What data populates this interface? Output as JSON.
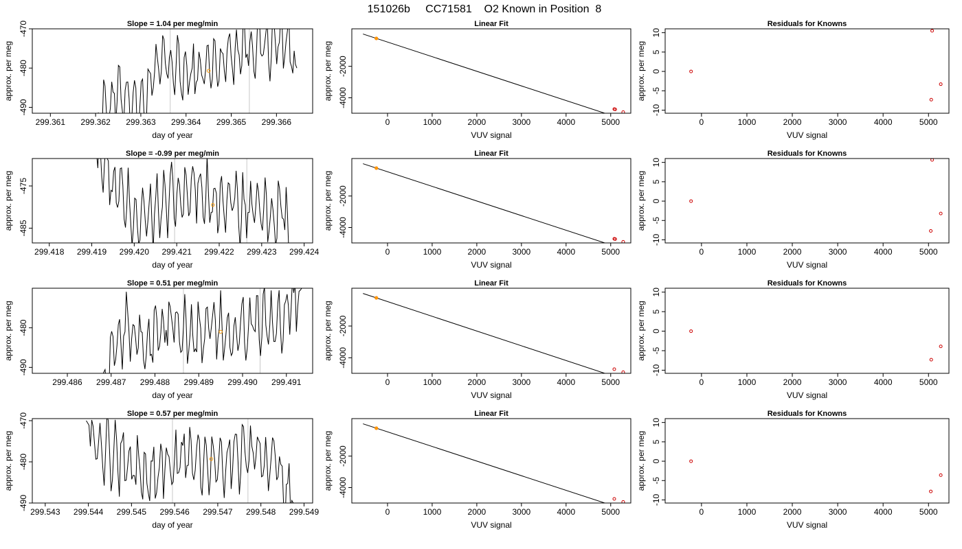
{
  "figure": {
    "title": "151026b     CC71581    O2 Known in Position  8",
    "colors": {
      "axis": "#000000",
      "trace": "#000000",
      "vline": "#c8c8c8",
      "orange": "#ff9900",
      "red": "#cc0000"
    }
  },
  "chart_data": [
    {
      "type": "line",
      "panel": "timeseries",
      "row": 0,
      "title": "Slope =  1.04  per meg/min",
      "slope": 1.04,
      "xlabel": "day of year",
      "ylabel": "approx. per meg",
      "xlim": [
        299.3606,
        299.3668
      ],
      "ylim": [
        -491.5,
        -470
      ],
      "xticks": [
        "299.361",
        "299.362",
        "299.363",
        "299.364",
        "299.365",
        "299.366"
      ],
      "yticks": [
        "-490",
        "-480",
        "-470"
      ],
      "vlines": [
        299.36365,
        299.3654
      ],
      "known_point": {
        "x": 299.3645,
        "y": -480.7
      },
      "trace": {
        "x_start": 299.362,
        "x_end": 299.36645,
        "y_start": -492,
        "knots": [
          [
            299.362,
            -492
          ],
          [
            299.3626,
            -486
          ],
          [
            299.363,
            -490
          ],
          [
            299.3635,
            -478
          ],
          [
            299.364,
            -482
          ],
          [
            299.3645,
            -480
          ],
          [
            299.365,
            -476
          ],
          [
            299.3654,
            -474
          ],
          [
            299.3659,
            -474
          ],
          [
            299.3662,
            -472
          ],
          [
            299.36645,
            -480
          ]
        ]
      }
    },
    {
      "type": "scatter",
      "panel": "linear_fit",
      "row": 0,
      "title": "Linear Fit",
      "xlabel": "VUV signal",
      "ylabel": "approx. per meg",
      "xlim": [
        -800,
        5450
      ],
      "ylim": [
        -4980,
        380
      ],
      "xticks": [
        "0",
        "1000",
        "2000",
        "3000",
        "4000",
        "5000"
      ],
      "yticks": [
        "-4000",
        "-2000"
      ],
      "fit_line": {
        "slope": -0.9285,
        "intercept": -460
      },
      "points": [
        [
          -250,
          -230
        ],
        [
          5080,
          -4720
        ],
        [
          5100,
          -4735
        ],
        [
          5280,
          -4910
        ]
      ],
      "known_point": {
        "x": -250,
        "y": -230
      }
    },
    {
      "type": "scatter",
      "panel": "residuals",
      "row": 0,
      "title": "Residuals for Knowns",
      "xlabel": "VUV signal",
      "ylabel": "approx. per meg",
      "xlim": [
        -800,
        5450
      ],
      "ylim": [
        -10.8,
        11
      ],
      "xticks": [
        "0",
        "1000",
        "2000",
        "3000",
        "4000",
        "5000"
      ],
      "yticks": [
        "-10",
        "-5",
        "0",
        "5",
        "10"
      ],
      "points": [
        [
          -230,
          0
        ],
        [
          5080,
          10.5
        ],
        [
          5060,
          -7.3
        ],
        [
          5270,
          -3.3
        ]
      ]
    },
    {
      "type": "line",
      "panel": "timeseries",
      "row": 1,
      "title": "Slope =  -0.99  per meg/min",
      "slope": -0.99,
      "xlabel": "day of year",
      "ylabel": "approx. per meg",
      "xlim": [
        299.4176,
        299.4242
      ],
      "ylim": [
        -488.5,
        -468.5
      ],
      "xticks": [
        "299.418",
        "299.419",
        "299.420",
        "299.421",
        "299.422",
        "299.423",
        "299.424"
      ],
      "yticks": [
        "-485",
        "-475"
      ],
      "vlines": [
        299.42095,
        299.42265
      ],
      "known_point": {
        "x": 299.42185,
        "y": -479.5
      },
      "trace": {
        "x_start": 299.41905,
        "x_end": 299.4237,
        "y_start": -466,
        "knots": [
          [
            299.41905,
            -466
          ],
          [
            299.4195,
            -475
          ],
          [
            299.42,
            -482
          ],
          [
            299.4205,
            -481
          ],
          [
            299.421,
            -478
          ],
          [
            299.4215,
            -476
          ],
          [
            299.422,
            -478
          ],
          [
            299.4225,
            -480
          ],
          [
            299.423,
            -482
          ],
          [
            299.4235,
            -481
          ],
          [
            299.4237,
            -490
          ]
        ]
      }
    },
    {
      "type": "scatter",
      "panel": "linear_fit",
      "row": 1,
      "title": "Linear Fit",
      "xlabel": "VUV signal",
      "ylabel": "approx. per meg",
      "xlim": [
        -800,
        5450
      ],
      "ylim": [
        -4980,
        380
      ],
      "xticks": [
        "0",
        "1000",
        "2000",
        "3000",
        "4000",
        "5000"
      ],
      "yticks": [
        "-4000",
        "-2000"
      ],
      "fit_line": {
        "slope": -0.9285,
        "intercept": -460
      },
      "points": [
        [
          -250,
          -230
        ],
        [
          5080,
          -4720
        ],
        [
          5100,
          -4735
        ],
        [
          5280,
          -4910
        ]
      ],
      "known_point": {
        "x": -250,
        "y": -230
      }
    },
    {
      "type": "scatter",
      "panel": "residuals",
      "row": 1,
      "title": "Residuals for Knowns",
      "xlabel": "VUV signal",
      "ylabel": "approx. per meg",
      "xlim": [
        -800,
        5450
      ],
      "ylim": [
        -10.8,
        11
      ],
      "xticks": [
        "0",
        "1000",
        "2000",
        "3000",
        "4000",
        "5000"
      ],
      "yticks": [
        "-10",
        "-5",
        "0",
        "5",
        "10"
      ],
      "points": [
        [
          -230,
          0
        ],
        [
          5080,
          10.7
        ],
        [
          5050,
          -7.7
        ],
        [
          5270,
          -3.2
        ]
      ]
    },
    {
      "type": "line",
      "panel": "timeseries",
      "row": 2,
      "title": "Slope =  0.51  per meg/min",
      "slope": 0.51,
      "xlabel": "day of year",
      "ylabel": "approx. per meg",
      "xlim": [
        299.4852,
        299.4916
      ],
      "ylim": [
        -491.5,
        -470
      ],
      "xticks": [
        "299.486",
        "299.487",
        "299.488",
        "299.489",
        "299.490",
        "299.491"
      ],
      "yticks": [
        "-490",
        "-480"
      ],
      "vlines": [
        299.48865,
        299.4904
      ],
      "known_point": {
        "x": 299.4895,
        "y": -481
      },
      "trace": {
        "x_start": 299.4868,
        "x_end": 299.49135,
        "y_start": -492,
        "knots": [
          [
            299.4868,
            -492
          ],
          [
            299.4873,
            -480
          ],
          [
            299.4878,
            -484
          ],
          [
            299.4883,
            -478
          ],
          [
            299.4888,
            -482
          ],
          [
            299.4893,
            -480
          ],
          [
            299.4898,
            -481
          ],
          [
            299.4903,
            -478
          ],
          [
            299.4908,
            -479
          ],
          [
            299.4911,
            -474
          ],
          [
            299.49135,
            -470
          ]
        ]
      }
    },
    {
      "type": "scatter",
      "panel": "linear_fit",
      "row": 2,
      "title": "Linear Fit",
      "xlabel": "VUV signal",
      "ylabel": "approx. per meg",
      "xlim": [
        -800,
        5450
      ],
      "ylim": [
        -4980,
        380
      ],
      "xticks": [
        "0",
        "1000",
        "2000",
        "3000",
        "4000",
        "5000"
      ],
      "yticks": [
        "-4000",
        "-2000"
      ],
      "fit_line": {
        "slope": -0.9285,
        "intercept": -460
      },
      "points": [
        [
          -250,
          -230
        ],
        [
          5080,
          -4720
        ],
        [
          5280,
          -4910
        ]
      ],
      "known_point": {
        "x": -250,
        "y": -230
      }
    },
    {
      "type": "scatter",
      "panel": "residuals",
      "row": 2,
      "title": "Residuals for Knowns",
      "xlabel": "VUV signal",
      "ylabel": "approx. per meg",
      "xlim": [
        -800,
        5450
      ],
      "ylim": [
        -10.8,
        11
      ],
      "xticks": [
        "0",
        "1000",
        "2000",
        "3000",
        "4000",
        "5000"
      ],
      "yticks": [
        "-10",
        "-5",
        "0",
        "5",
        "10"
      ],
      "points": [
        [
          -230,
          0
        ],
        [
          5060,
          -7.3
        ],
        [
          5270,
          -3.9
        ]
      ]
    },
    {
      "type": "line",
      "panel": "timeseries",
      "row": 3,
      "title": "Slope =  0.57  per meg/min",
      "slope": 0.57,
      "xlabel": "day of year",
      "ylabel": "approx. per meg",
      "xlim": [
        299.5427,
        299.5492
      ],
      "ylim": [
        -490,
        -469.5
      ],
      "xticks": [
        "299.543",
        "299.544",
        "299.545",
        "299.546",
        "299.547",
        "299.548",
        "299.549"
      ],
      "yticks": [
        "-490",
        "-480",
        "-470"
      ],
      "vlines": [
        299.54595,
        299.5477
      ],
      "known_point": {
        "x": 299.54685,
        "y": -479.3
      },
      "trace": {
        "x_start": 299.54395,
        "x_end": 299.54875,
        "y_start": -470,
        "knots": [
          [
            299.54395,
            -470
          ],
          [
            299.5443,
            -476
          ],
          [
            299.5448,
            -480
          ],
          [
            299.5453,
            -484
          ],
          [
            299.5458,
            -481
          ],
          [
            299.5463,
            -479
          ],
          [
            299.5468,
            -480
          ],
          [
            299.5473,
            -479
          ],
          [
            299.5478,
            -478
          ],
          [
            299.5483,
            -481
          ],
          [
            299.54875,
            -490
          ]
        ]
      }
    },
    {
      "type": "scatter",
      "panel": "linear_fit",
      "row": 3,
      "title": "Linear Fit",
      "xlabel": "VUV signal",
      "ylabel": "approx. per meg",
      "xlim": [
        -800,
        5450
      ],
      "ylim": [
        -4980,
        380
      ],
      "xticks": [
        "0",
        "1000",
        "2000",
        "3000",
        "4000",
        "5000"
      ],
      "yticks": [
        "-4000",
        "-2000"
      ],
      "fit_line": {
        "slope": -0.9285,
        "intercept": -460
      },
      "points": [
        [
          -250,
          -230
        ],
        [
          5080,
          -4720
        ],
        [
          5280,
          -4910
        ]
      ],
      "known_point": {
        "x": -250,
        "y": -230
      }
    },
    {
      "type": "scatter",
      "panel": "residuals",
      "row": 3,
      "title": "Residuals for Knowns",
      "xlabel": "VUV signal",
      "ylabel": "approx. per meg",
      "xlim": [
        -800,
        5450
      ],
      "ylim": [
        -10.8,
        11
      ],
      "xticks": [
        "0",
        "1000",
        "2000",
        "3000",
        "4000",
        "5000"
      ],
      "yticks": [
        "-10",
        "-5",
        "0",
        "5",
        "10"
      ],
      "points": [
        [
          -230,
          0
        ],
        [
          5050,
          -7.8
        ],
        [
          5270,
          -3.6
        ]
      ]
    }
  ]
}
